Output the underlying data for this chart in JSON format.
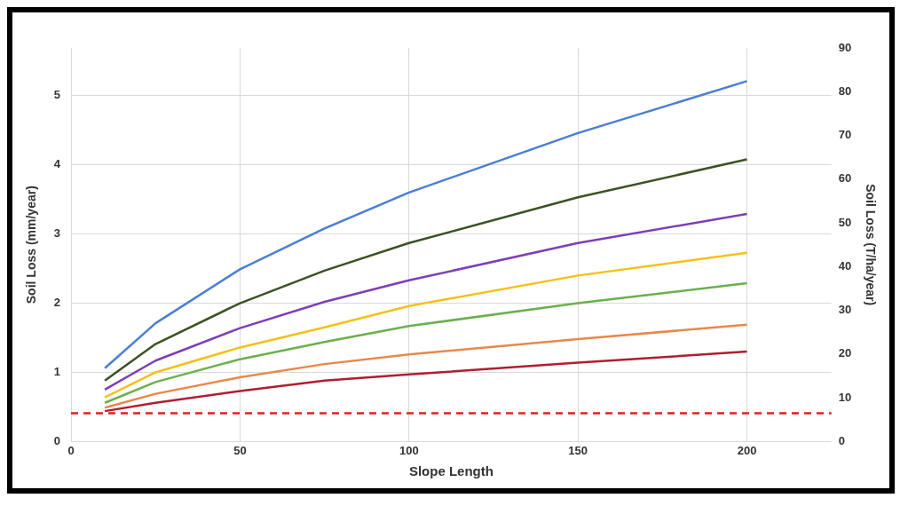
{
  "chart_data": {
    "type": "line",
    "xlabel": "Slope Length",
    "ylabel": "Soil Loss (mm/year)",
    "y2label": "Soil Loss (T/ha/year)",
    "xlim": [
      0,
      225
    ],
    "xticks": [
      0,
      50,
      100,
      150,
      200
    ],
    "ylim": [
      0,
      5.69
    ],
    "yticks": [
      0,
      1,
      2,
      3,
      4,
      5
    ],
    "y2lim": [
      0,
      90
    ],
    "y2ticks": [
      0,
      10,
      20,
      30,
      40,
      50,
      60,
      70,
      80,
      90
    ],
    "grid": true,
    "legend": false,
    "marker": "none",
    "line_style": "solid",
    "x": [
      10,
      25,
      50,
      75,
      100,
      150,
      200
    ],
    "series": [
      {
        "color": "#4a7fd4",
        "values": [
          1.06,
          1.71,
          2.49,
          3.08,
          3.6,
          4.46,
          5.21
        ]
      },
      {
        "color": "#3b5323",
        "values": [
          0.88,
          1.41,
          2.0,
          2.47,
          2.87,
          3.53,
          4.08
        ]
      },
      {
        "color": "#7e3fb5",
        "values": [
          0.75,
          1.17,
          1.64,
          2.02,
          2.33,
          2.87,
          3.29
        ]
      },
      {
        "color": "#f5c018",
        "values": [
          0.64,
          1.0,
          1.36,
          1.65,
          1.96,
          2.4,
          2.73
        ]
      },
      {
        "color": "#6ab04c",
        "values": [
          0.56,
          0.86,
          1.19,
          1.44,
          1.67,
          2.0,
          2.29
        ]
      },
      {
        "color": "#e8884a",
        "values": [
          0.49,
          0.69,
          0.93,
          1.12,
          1.26,
          1.48,
          1.69
        ]
      },
      {
        "color": "#b01e2e",
        "values": [
          0.44,
          0.56,
          0.73,
          0.88,
          0.97,
          1.14,
          1.3
        ]
      }
    ],
    "ref_lines": [
      {
        "axis": "y",
        "value": 0.41,
        "color": "#e02020",
        "line_style": "dashed"
      }
    ]
  }
}
